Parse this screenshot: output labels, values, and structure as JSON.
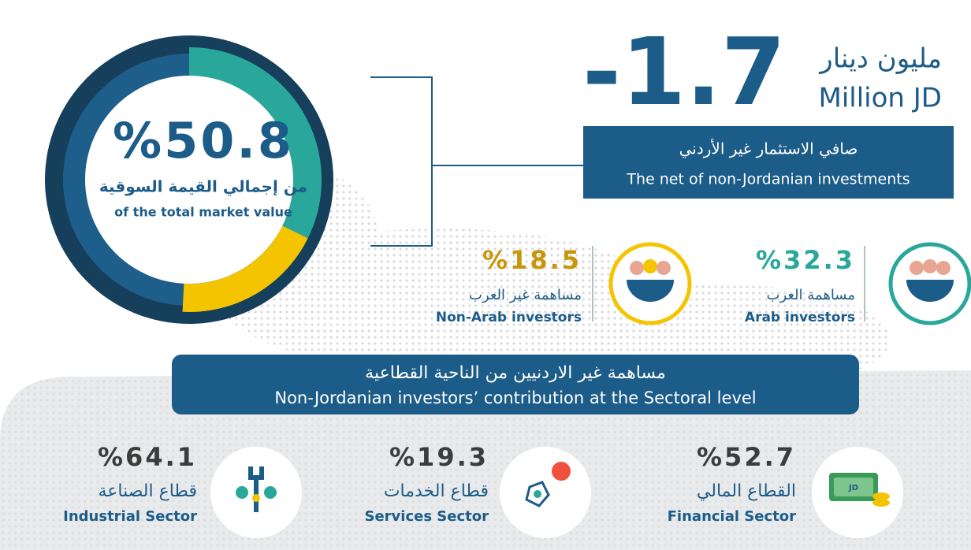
{
  "headline": {
    "value": "-1.7",
    "unit_ar": "مليون دينار",
    "unit_en": "Million JD"
  },
  "net_box": {
    "ar": "صافي الاستثمار غير الأردني",
    "en": "The net of non-Jordanian investments"
  },
  "donut": {
    "total": {
      "value": 50.8,
      "label": "%50.8"
    },
    "caption_ar": "من إجمالي القيمة السوقية",
    "caption_en": "of the total market value"
  },
  "investors": [
    {
      "share": {
        "value": 32.3,
        "label": "%32.3"
      },
      "ar": "مساهمة العرب",
      "en": "Arab investors"
    },
    {
      "share": {
        "value": 18.5,
        "label": "%18.5"
      },
      "ar": "مساهمة غير العرب",
      "en": "Non-Arab investors"
    }
  ],
  "sector_banner": {
    "ar": "مساهمة غير الاردنيين من الناحية القطاعية",
    "en": "Non-Jordanian investors’ contribution at the Sectoral level"
  },
  "sectors": [
    {
      "value": "%52.7",
      "ar": "القطاع المالي",
      "en": "Financial Sector"
    },
    {
      "value": "%19.3",
      "ar": "قطاع الخدمات",
      "en": "Services Sector"
    },
    {
      "value": "%64.1",
      "ar": "قطاع الصناعة",
      "en": "Industrial Sector"
    }
  ]
}
